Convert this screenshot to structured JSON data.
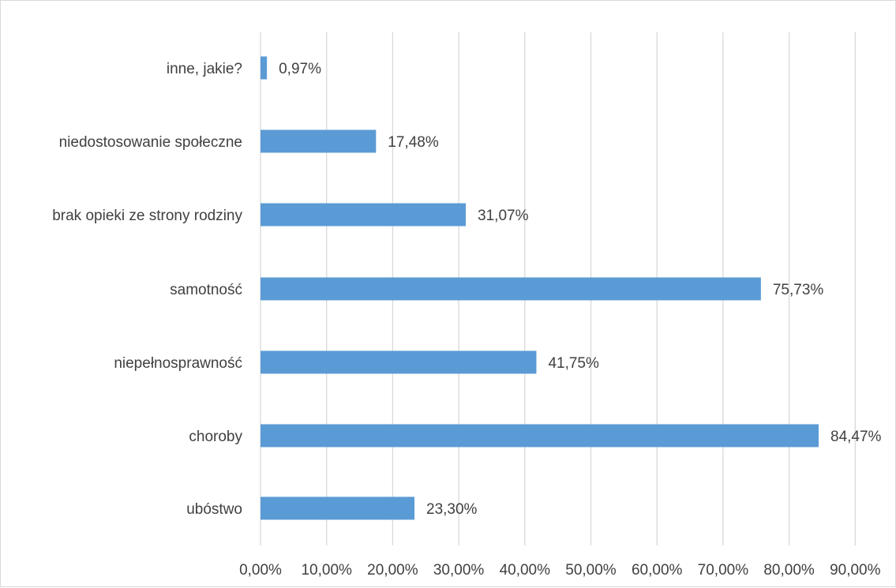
{
  "chart_data": {
    "type": "bar",
    "orientation": "horizontal",
    "categories": [
      "inne, jakie?",
      "niedostosowanie społeczne",
      "brak opieki ze strony rodziny",
      "samotność",
      "niepełnosprawność",
      "choroby",
      "ubóstwo"
    ],
    "values": [
      0.97,
      17.48,
      31.07,
      75.73,
      41.75,
      84.47,
      23.3
    ],
    "data_labels": [
      "0,97%",
      "17,48%",
      "31,07%",
      "75,73%",
      "41,75%",
      "84,47%",
      "23,30%"
    ],
    "x_ticks": [
      "0,00%",
      "10,00%",
      "20,00%",
      "30,00%",
      "40,00%",
      "50,00%",
      "60,00%",
      "70,00%",
      "80,00%",
      "90,00%"
    ],
    "xlim": [
      0,
      90
    ],
    "grid": "vertical",
    "legend": "none",
    "bar_color": "#5b9bd5",
    "gridline_color": "#d9d9d9",
    "text_color": "#404040"
  }
}
